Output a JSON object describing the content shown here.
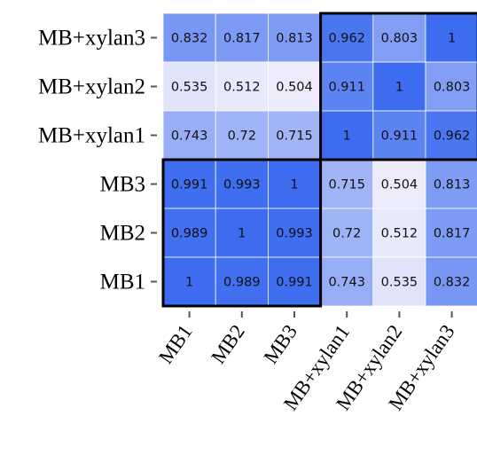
{
  "chart_data": {
    "type": "heatmap",
    "rows": [
      "MB+xylan3",
      "MB+xylan2",
      "MB+xylan1",
      "MB3",
      "MB2",
      "MB1"
    ],
    "columns": [
      "MB1",
      "MB2",
      "MB3",
      "MB+xylan1",
      "MB+xylan2",
      "MB+xylan3"
    ],
    "values": [
      [
        0.832,
        0.817,
        0.813,
        0.962,
        0.803,
        1
      ],
      [
        0.535,
        0.512,
        0.504,
        0.911,
        1,
        0.803
      ],
      [
        0.743,
        0.72,
        0.715,
        1,
        0.911,
        0.962
      ],
      [
        0.991,
        0.993,
        1,
        0.715,
        0.504,
        0.813
      ],
      [
        0.989,
        1,
        0.993,
        0.72,
        0.512,
        0.817
      ],
      [
        1,
        0.989,
        0.991,
        0.743,
        0.535,
        0.832
      ]
    ],
    "value_labels": [
      [
        "0.832",
        "0.817",
        "0.813",
        "0.962",
        "0.803",
        "1"
      ],
      [
        "0.535",
        "0.512",
        "0.504",
        "0.911",
        "1",
        "0.803"
      ],
      [
        "0.743",
        "0.72",
        "0.715",
        "1",
        "0.911",
        "0.962"
      ],
      [
        "0.991",
        "0.993",
        "1",
        "0.715",
        "0.504",
        "0.813"
      ],
      [
        "0.989",
        "1",
        "0.993",
        "0.72",
        "0.512",
        "0.817"
      ],
      [
        "1",
        "0.989",
        "0.991",
        "0.743",
        "0.535",
        "0.832"
      ]
    ],
    "value_range": [
      0.5,
      1
    ],
    "color_low": "#ececfb",
    "color_high": "#3d6cf0",
    "grid_line_color": "#ffffff",
    "box_color": "#000000",
    "boxed_groups": [
      {
        "rows": [
          3,
          5
        ],
        "columns": [
          0,
          2
        ]
      },
      {
        "rows": [
          0,
          2
        ],
        "columns": [
          3,
          5
        ]
      }
    ],
    "title": "",
    "xlabel": "",
    "ylabel": "",
    "legend": "none"
  }
}
